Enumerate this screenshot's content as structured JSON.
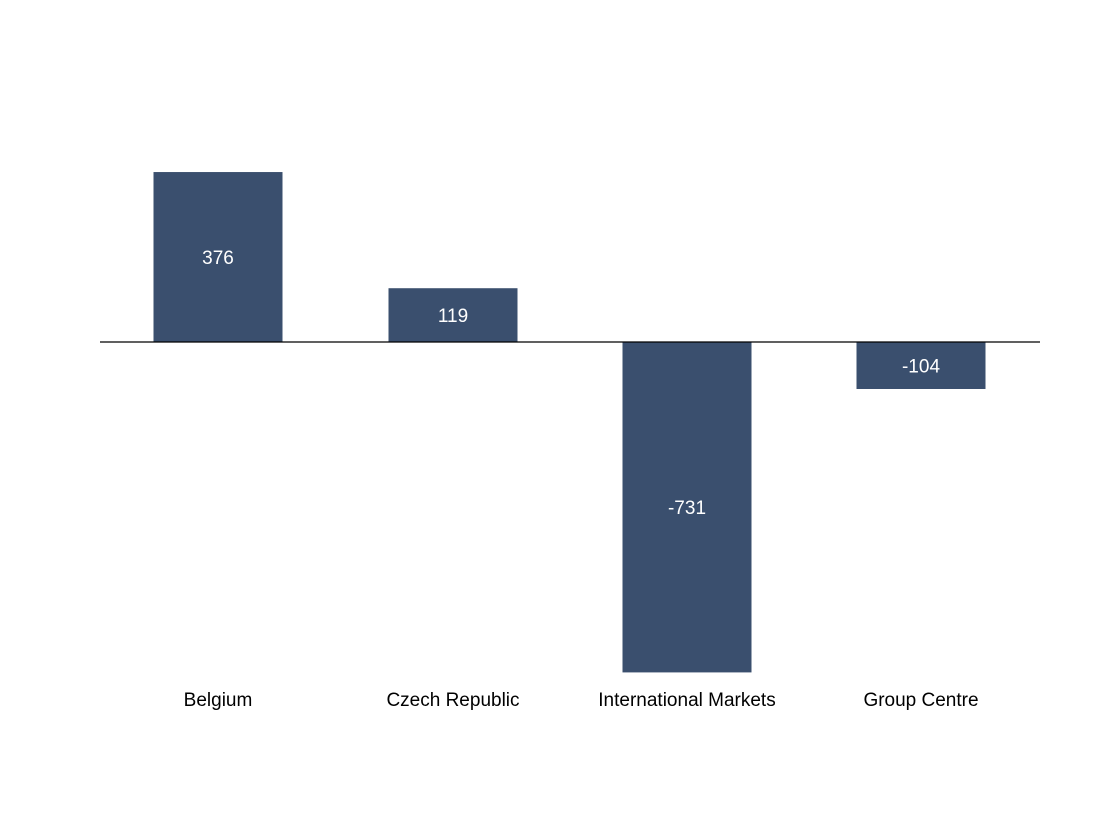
{
  "chart_data": {
    "type": "bar",
    "categories": [
      "Belgium",
      "Czech Republic",
      "International Markets",
      "Group Centre"
    ],
    "values": [
      376,
      119,
      -731,
      -104
    ],
    "data_labels": [
      "376",
      "119",
      "-731",
      "-104"
    ],
    "title": "",
    "xlabel": "",
    "ylabel": "",
    "ylim": [
      -731,
      376
    ],
    "grid": false,
    "legend": "none",
    "colors": {
      "bar": "#3a4f6e",
      "baseline": "#000000",
      "label_text": "#ffffff",
      "category_text": "#000000"
    }
  }
}
